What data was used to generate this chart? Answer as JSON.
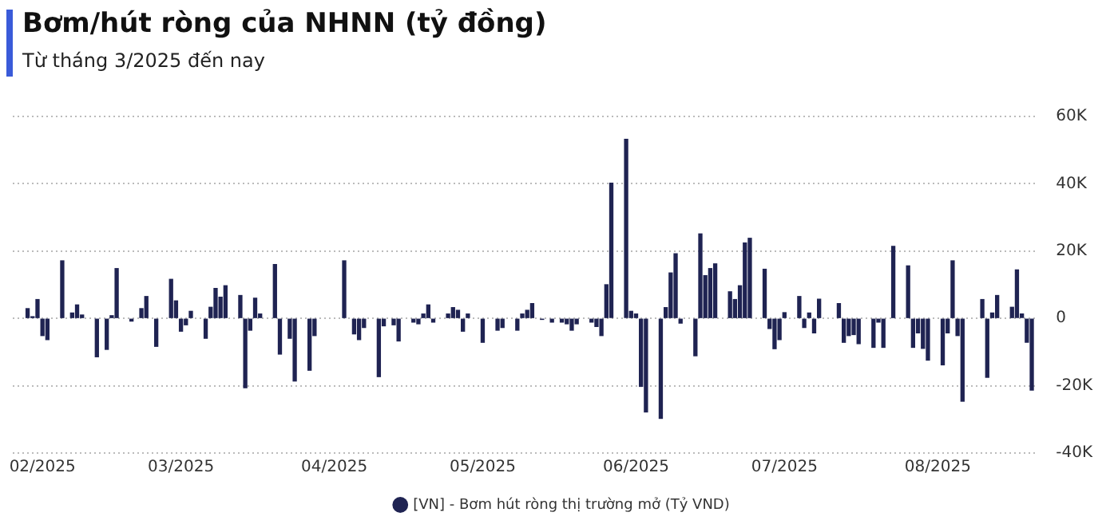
{
  "chart_data": {
    "type": "bar",
    "title": "Bơm/hút ròng của NHNN (tỷ đồng)",
    "subtitle": "Từ tháng 3/2025 đến nay",
    "x": [
      "2025-01-29",
      "2025-01-30",
      "2025-01-31",
      "2025-02-01",
      "2025-02-02",
      "2025-02-05",
      "2025-02-07",
      "2025-02-08",
      "2025-02-09",
      "2025-02-12",
      "2025-02-14",
      "2025-02-15",
      "2025-02-16",
      "2025-02-19",
      "2025-02-21",
      "2025-02-22",
      "2025-02-24",
      "2025-02-27",
      "2025-02-28",
      "2025-03-01",
      "2025-03-02",
      "2025-03-03",
      "2025-03-06",
      "2025-03-07",
      "2025-03-08",
      "2025-03-09",
      "2025-03-10",
      "2025-03-13",
      "2025-03-14",
      "2025-03-15",
      "2025-03-16",
      "2025-03-17",
      "2025-03-20",
      "2025-03-21",
      "2025-03-23",
      "2025-03-24",
      "2025-03-27",
      "2025-03-28",
      "2025-04-03",
      "2025-04-05",
      "2025-04-06",
      "2025-04-07",
      "2025-04-10",
      "2025-04-11",
      "2025-04-13",
      "2025-04-14",
      "2025-04-17",
      "2025-04-18",
      "2025-04-19",
      "2025-04-20",
      "2025-04-21",
      "2025-04-24",
      "2025-04-25",
      "2025-04-26",
      "2025-04-27",
      "2025-04-28",
      "2025-05-01",
      "2025-05-04",
      "2025-05-05",
      "2025-05-08",
      "2025-05-09",
      "2025-05-10",
      "2025-05-11",
      "2025-05-13",
      "2025-05-15",
      "2025-05-17",
      "2025-05-18",
      "2025-05-19",
      "2025-05-20",
      "2025-05-23",
      "2025-05-24",
      "2025-05-25",
      "2025-05-26",
      "2025-05-27",
      "2025-05-30",
      "2025-05-31",
      "2025-06-01",
      "2025-06-02",
      "2025-06-03",
      "2025-06-06",
      "2025-06-07",
      "2025-06-08",
      "2025-06-09",
      "2025-06-10",
      "2025-06-13",
      "2025-06-14",
      "2025-06-15",
      "2025-06-16",
      "2025-06-17",
      "2025-06-20",
      "2025-06-21",
      "2025-06-22",
      "2025-06-23",
      "2025-06-24",
      "2025-06-27",
      "2025-06-28",
      "2025-06-29",
      "2025-06-30",
      "2025-07-01",
      "2025-07-04",
      "2025-07-05",
      "2025-07-06",
      "2025-07-07",
      "2025-07-08",
      "2025-07-12",
      "2025-07-13",
      "2025-07-14",
      "2025-07-15",
      "2025-07-16",
      "2025-07-19",
      "2025-07-20",
      "2025-07-21",
      "2025-07-23",
      "2025-07-26",
      "2025-07-27",
      "2025-07-28",
      "2025-07-29",
      "2025-07-30",
      "2025-08-02",
      "2025-08-03",
      "2025-08-04",
      "2025-08-05",
      "2025-08-06",
      "2025-08-10",
      "2025-08-11",
      "2025-08-12",
      "2025-08-13",
      "2025-08-16",
      "2025-08-17",
      "2025-08-18",
      "2025-08-19",
      "2025-08-20"
    ],
    "series": [
      {
        "name": "[VN] - Bơm hút ròng thị trường mở (Tỷ VND)",
        "color": "#1f2352",
        "values": [
          2900,
          500,
          5600,
          -5100,
          -6300,
          17100,
          1600,
          4000,
          1000,
          -11400,
          -9200,
          800,
          14800,
          -800,
          2900,
          6500,
          -8300,
          11600,
          5200,
          -3800,
          -1900,
          2100,
          -5900,
          3300,
          8900,
          6300,
          9700,
          6800,
          -20600,
          -3500,
          6000,
          1300,
          16000,
          -10600,
          -5900,
          -18600,
          -15400,
          -5100,
          17100,
          -4600,
          -6300,
          -2700,
          -17300,
          -2200,
          -1900,
          -6700,
          -1100,
          -1600,
          1300,
          4000,
          -1100,
          1300,
          3200,
          2400,
          -3800,
          1300,
          -7100,
          -3500,
          -2700,
          -3500,
          1300,
          2400,
          4400,
          -300,
          -1100,
          -1100,
          -1600,
          -3500,
          -1600,
          -1100,
          -2400,
          -5100,
          10000,
          40200,
          53200,
          2100,
          1300,
          -20200,
          -27800,
          -29700,
          3200,
          13500,
          19200,
          -1400,
          -11100,
          25100,
          12700,
          14800,
          16200,
          7900,
          5600,
          9700,
          22400,
          23800,
          14600,
          -3000,
          -9000,
          -6300,
          1700,
          6500,
          -2700,
          1600,
          -4300,
          5700,
          4400,
          -7100,
          -5100,
          -4800,
          -7500,
          -8600,
          -1100,
          -8600,
          21400,
          15600,
          -8600,
          -4300,
          -8900,
          -12400,
          -13800,
          -4300,
          17100,
          -5100,
          -24600,
          5600,
          -17500,
          1600,
          6800,
          3300,
          14400,
          1300,
          -7100,
          -21300
        ]
      }
    ],
    "xlim": [
      "2025-01-26",
      "2025-08-21"
    ],
    "xticks": [
      {
        "value": "2025-02-01",
        "label": "02/2025"
      },
      {
        "value": "2025-03-01",
        "label": "03/2025"
      },
      {
        "value": "2025-04-01",
        "label": "04/2025"
      },
      {
        "value": "2025-05-01",
        "label": "05/2025"
      },
      {
        "value": "2025-06-01",
        "label": "06/2025"
      },
      {
        "value": "2025-07-01",
        "label": "07/2025"
      },
      {
        "value": "2025-08-01",
        "label": "08/2025"
      }
    ],
    "ylim": [
      -40000,
      60000
    ],
    "yticks": [
      {
        "value": -40000,
        "label": "-40K"
      },
      {
        "value": -20000,
        "label": "-20K"
      },
      0,
      {
        "value": 20000,
        "label": "20K"
      },
      {
        "value": 40000,
        "label": "40K"
      },
      {
        "value": 60000,
        "label": "60K"
      }
    ],
    "grid": "y",
    "legend": "bottom"
  }
}
